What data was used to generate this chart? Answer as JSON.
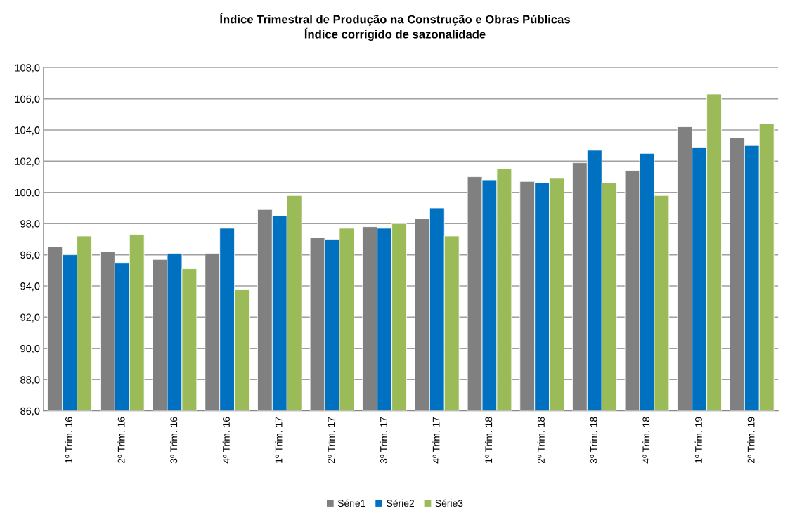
{
  "chart_data": {
    "type": "bar",
    "title": "Índice Trimestral de Produção na Construção e Obras Públicas\nÍndice corrigido de sazonalidade",
    "categories": [
      "1º Trim. 16",
      "2º Trim. 16",
      "3º Trim. 16",
      "4º Trim. 16",
      "1º Trim. 17",
      "2º Trim. 17",
      "3º Trim. 17",
      "4º Trim. 17",
      "1º Trim. 18",
      "2º Trim. 18",
      "3º Trim. 18",
      "4º Trim. 18",
      "1º Trim. 19",
      "2º Trim. 19"
    ],
    "series": [
      {
        "name": "Série1",
        "color": "#808080",
        "values": [
          96.5,
          96.2,
          95.7,
          96.1,
          98.9,
          97.1,
          97.8,
          98.3,
          101.0,
          100.7,
          101.9,
          101.4,
          104.2,
          103.5
        ]
      },
      {
        "name": "Série2",
        "color": "#0070c0",
        "values": [
          96.0,
          95.5,
          96.1,
          97.7,
          98.5,
          97.0,
          97.7,
          99.0,
          100.8,
          100.6,
          102.7,
          102.5,
          102.9,
          103.0
        ]
      },
      {
        "name": "Série3",
        "color": "#9bbb59",
        "values": [
          97.2,
          97.3,
          95.1,
          93.8,
          99.8,
          97.7,
          98.0,
          97.2,
          101.5,
          100.9,
          100.6,
          99.8,
          106.3,
          104.4
        ]
      }
    ],
    "ylim": [
      86,
      108
    ],
    "yticks": [
      {
        "value": 86,
        "label": "86,0"
      },
      {
        "value": 88,
        "label": "88,0"
      },
      {
        "value": 90,
        "label": "90,0"
      },
      {
        "value": 92,
        "label": "92,0"
      },
      {
        "value": 94,
        "label": "94,0"
      },
      {
        "value": 96,
        "label": "96,0"
      },
      {
        "value": 98,
        "label": "98,0"
      },
      {
        "value": 100,
        "label": "100,0"
      },
      {
        "value": 102,
        "label": "102,0"
      },
      {
        "value": 104,
        "label": "104,0"
      },
      {
        "value": 106,
        "label": "106,0"
      },
      {
        "value": 108,
        "label": "108,0"
      }
    ],
    "grid": "y",
    "legend": "bottom"
  }
}
